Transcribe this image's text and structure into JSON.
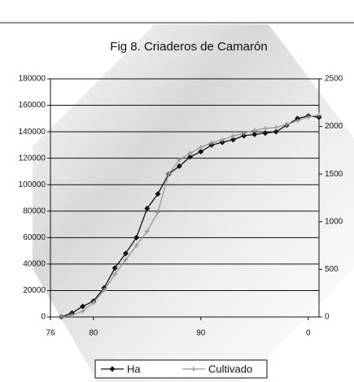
{
  "chart_data": {
    "type": "line",
    "title": "Fig 8. Criaderos de Camarón",
    "x": [
      77,
      78,
      79,
      80,
      81,
      82,
      83,
      84,
      85,
      86,
      87,
      88,
      89,
      90,
      91,
      92,
      93,
      94,
      95,
      96,
      97,
      98,
      99,
      100,
      101
    ],
    "series": [
      {
        "name": "Ha",
        "color": "#111111",
        "values": [
          0,
          3000,
          8000,
          12000,
          22000,
          37000,
          48000,
          60000,
          82000,
          93000,
          108000,
          114000,
          121000,
          125000,
          130000,
          132000,
          134000,
          137000,
          138000,
          139000,
          140000,
          145000,
          150000,
          152000,
          151000
        ]
      },
      {
        "name": "Cultivado",
        "color": "#999999",
        "axis": "y2",
        "values": [
          0,
          20,
          60,
          150,
          280,
          450,
          600,
          750,
          900,
          1100,
          1500,
          1650,
          1720,
          1780,
          1830,
          1860,
          1900,
          1930,
          1960,
          1980,
          1990,
          2020,
          2060,
          2100,
          2120
        ]
      }
    ],
    "xlim": [
      76,
      101
    ],
    "xticks": [
      76,
      80,
      90,
      {
        "value": 100,
        "label": "0"
      }
    ],
    "ylim": [
      0,
      180000
    ],
    "yticks": [
      0,
      20000,
      40000,
      60000,
      80000,
      100000,
      120000,
      140000,
      160000,
      180000
    ],
    "y2lim": [
      0,
      2500
    ],
    "y2ticks": [
      0,
      500,
      1000,
      1500,
      2000,
      2500
    ],
    "grid": true,
    "legend": "bottom"
  }
}
